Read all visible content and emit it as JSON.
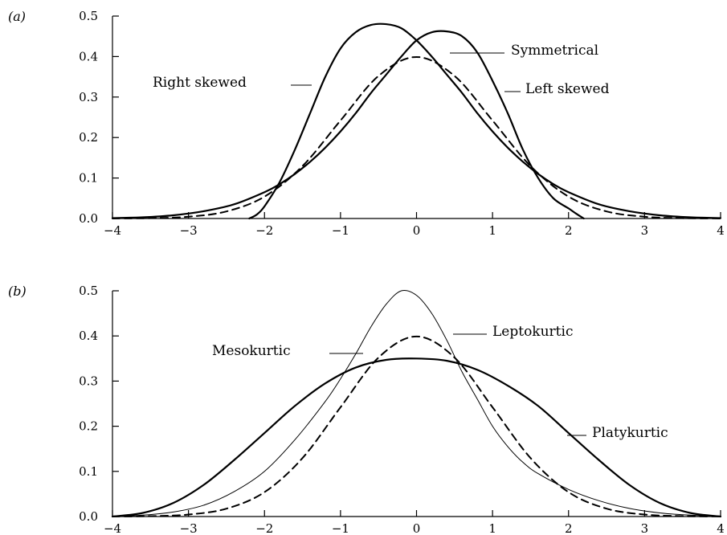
{
  "chart_data": [
    {
      "type": "line",
      "panel_label": "(a)",
      "xlim": [
        -4,
        4
      ],
      "ylim": [
        0,
        0.5
      ],
      "xticks": [
        -4,
        -3,
        -2,
        -1,
        0,
        1,
        2,
        3,
        4
      ],
      "yticks": [
        0.0,
        0.1,
        0.2,
        0.3,
        0.4,
        0.5
      ],
      "xtick_labels": [
        "−4",
        "−3",
        "−2",
        "−1",
        "0",
        "1",
        "2",
        "3",
        "4"
      ],
      "ytick_labels": [
        "0.0",
        "0.1",
        "0.2",
        "0.3",
        "0.4",
        "0.5"
      ],
      "grid": false,
      "series": [
        {
          "name": "Symmetrical",
          "style": "dashed",
          "x": [
            -4,
            -3.5,
            -3,
            -2.5,
            -2,
            -1.5,
            -1,
            -0.5,
            0,
            0.5,
            1,
            1.5,
            2,
            2.5,
            3,
            3.5,
            4
          ],
          "y": [
            0.0001,
            0.0009,
            0.0044,
            0.0175,
            0.054,
            0.1295,
            0.242,
            0.3521,
            0.3989,
            0.3521,
            0.242,
            0.1295,
            0.054,
            0.0175,
            0.0044,
            0.0009,
            0.0001
          ]
        },
        {
          "name": "Right skewed",
          "style": "solid",
          "x": [
            -2.2,
            -2.1,
            -2.0,
            -1.8,
            -1.6,
            -1.4,
            -1.2,
            -1.0,
            -0.8,
            -0.6,
            -0.4,
            -0.2,
            0.0,
            0.2,
            0.4,
            0.6,
            0.8,
            1.0,
            1.2,
            1.4,
            1.6,
            1.8,
            2.0,
            2.4,
            2.8,
            3.2,
            3.6,
            4.0
          ],
          "y": [
            0.0,
            0.01,
            0.03,
            0.09,
            0.17,
            0.26,
            0.35,
            0.42,
            0.46,
            0.478,
            0.48,
            0.47,
            0.44,
            0.4,
            0.355,
            0.31,
            0.26,
            0.215,
            0.175,
            0.14,
            0.11,
            0.085,
            0.065,
            0.035,
            0.018,
            0.008,
            0.003,
            0.001
          ]
        },
        {
          "name": "Left skewed",
          "style": "solid",
          "x": [
            -4.0,
            -3.6,
            -3.2,
            -2.8,
            -2.4,
            -2.0,
            -1.8,
            -1.6,
            -1.4,
            -1.2,
            -1.0,
            -0.8,
            -0.6,
            -0.4,
            -0.2,
            0.0,
            0.2,
            0.4,
            0.6,
            0.8,
            1.0,
            1.2,
            1.4,
            1.6,
            1.8,
            2.0,
            2.1,
            2.2
          ],
          "y": [
            0.001,
            0.003,
            0.008,
            0.018,
            0.035,
            0.065,
            0.085,
            0.11,
            0.14,
            0.175,
            0.215,
            0.26,
            0.31,
            0.355,
            0.4,
            0.44,
            0.46,
            0.462,
            0.45,
            0.41,
            0.34,
            0.26,
            0.17,
            0.1,
            0.05,
            0.025,
            0.012,
            0.0
          ]
        }
      ],
      "annotations": [
        {
          "text": "Right skewed",
          "x": -1.35,
          "y": 0.33
        },
        {
          "text": "Symmetrical",
          "x": 0.55,
          "y": 0.4
        },
        {
          "text": "Left skewed",
          "x": 0.65,
          "y": 0.31
        }
      ]
    },
    {
      "type": "line",
      "panel_label": "(b)",
      "xlim": [
        -4,
        4
      ],
      "ylim": [
        0,
        0.5
      ],
      "xticks": [
        -4,
        -3,
        -2,
        -1,
        0,
        1,
        2,
        3,
        4
      ],
      "yticks": [
        0.0,
        0.1,
        0.2,
        0.3,
        0.4,
        0.5
      ],
      "xtick_labels": [
        "−4",
        "−3",
        "−2",
        "−1",
        "0",
        "1",
        "2",
        "3",
        "4"
      ],
      "ytick_labels": [
        "0.0",
        "0.1",
        "0.2",
        "0.3",
        "0.4",
        "0.5"
      ],
      "grid": false,
      "series": [
        {
          "name": "Mesokurtic",
          "style": "dashed",
          "x": [
            -4,
            -3.5,
            -3,
            -2.5,
            -2,
            -1.5,
            -1,
            -0.5,
            0,
            0.5,
            1,
            1.5,
            2,
            2.5,
            3,
            3.5,
            4
          ],
          "y": [
            0.0001,
            0.0009,
            0.0044,
            0.0175,
            0.054,
            0.1295,
            0.242,
            0.3521,
            0.3989,
            0.3521,
            0.242,
            0.1295,
            0.054,
            0.0175,
            0.0044,
            0.0009,
            0.0001
          ]
        },
        {
          "name": "Leptokurtic",
          "style": "thin",
          "x": [
            -4.0,
            -3.6,
            -3.2,
            -2.8,
            -2.4,
            -2.0,
            -1.6,
            -1.2,
            -1.0,
            -0.8,
            -0.6,
            -0.4,
            -0.2,
            0.0,
            0.2,
            0.4,
            0.6,
            0.8,
            1.0,
            1.2,
            1.4,
            1.6,
            2.0,
            2.4,
            2.8,
            3.2,
            3.6,
            4.0
          ],
          "y": [
            0.0,
            0.003,
            0.01,
            0.025,
            0.055,
            0.1,
            0.17,
            0.255,
            0.305,
            0.36,
            0.42,
            0.47,
            0.5,
            0.49,
            0.45,
            0.39,
            0.32,
            0.26,
            0.2,
            0.155,
            0.12,
            0.095,
            0.06,
            0.035,
            0.018,
            0.008,
            0.003,
            0.0
          ]
        },
        {
          "name": "Platykurtic",
          "style": "solid",
          "x": [
            -4.0,
            -3.6,
            -3.2,
            -2.8,
            -2.4,
            -2.0,
            -1.6,
            -1.2,
            -0.8,
            -0.4,
            0.0,
            0.4,
            0.8,
            1.2,
            1.6,
            2.0,
            2.4,
            2.8,
            3.2,
            3.6,
            4.0
          ],
          "y": [
            0.0,
            0.008,
            0.03,
            0.07,
            0.125,
            0.185,
            0.245,
            0.295,
            0.33,
            0.347,
            0.35,
            0.345,
            0.325,
            0.29,
            0.245,
            0.185,
            0.125,
            0.07,
            0.03,
            0.008,
            0.0
          ]
        }
      ],
      "annotations": [
        {
          "text": "Mesokurtic",
          "x": -1.12,
          "y": 0.36
        },
        {
          "text": "Leptokurtic",
          "x": 0.6,
          "y": 0.41
        },
        {
          "text": "Platykurtic",
          "x": 1.95,
          "y": 0.2
        }
      ]
    }
  ]
}
